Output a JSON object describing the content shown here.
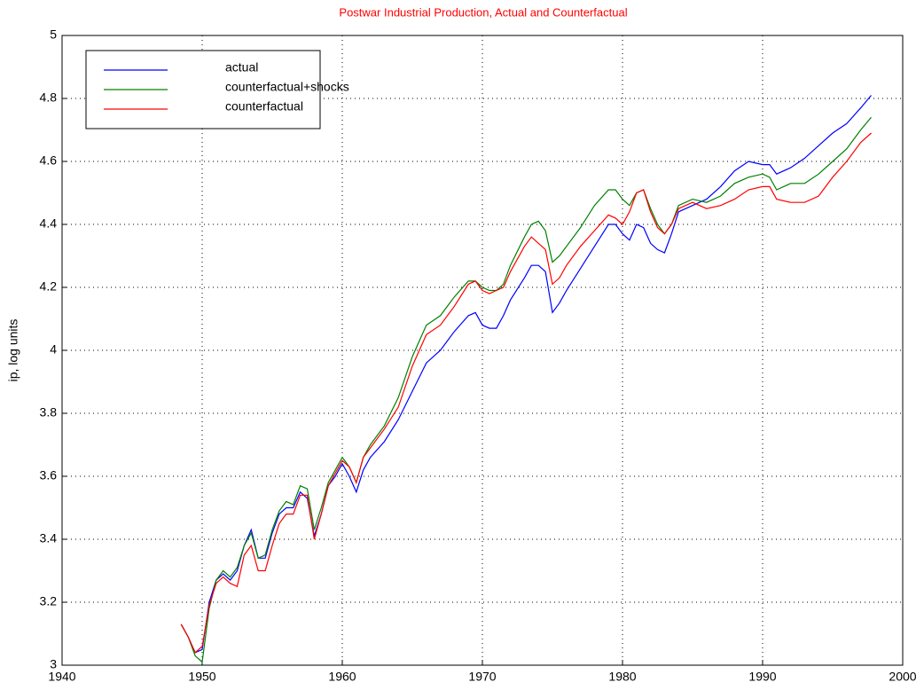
{
  "chart_data": {
    "type": "line",
    "title": "Postwar Industrial Production, Actual and Counterfactual",
    "y_label": "ip, log units",
    "x": [
      1948.5,
      1949,
      1949.5,
      1950,
      1950.5,
      1951,
      1951.5,
      1952,
      1952.5,
      1953,
      1953.5,
      1954,
      1954.5,
      1955,
      1955.5,
      1956,
      1956.5,
      1957,
      1957.5,
      1958,
      1958.5,
      1959,
      1959.5,
      1960,
      1960.5,
      1961,
      1961.5,
      1962,
      1963,
      1964,
      1965,
      1966,
      1967,
      1968,
      1969,
      1969.5,
      1970,
      1970.5,
      1971,
      1971.5,
      1972,
      1973,
      1973.5,
      1974,
      1974.5,
      1975,
      1975.5,
      1976,
      1977,
      1978,
      1979,
      1979.5,
      1980,
      1980.5,
      1981,
      1981.5,
      1982,
      1982.5,
      1983,
      1983.5,
      1984,
      1985,
      1986,
      1987,
      1988,
      1989,
      1990,
      1990.5,
      1991,
      1992,
      1993,
      1994,
      1995,
      1996,
      1997,
      1997.75
    ],
    "series": [
      {
        "name": "actual",
        "color": "#0000ff",
        "values": [
          3.13,
          3.09,
          3.04,
          3.05,
          3.2,
          3.27,
          3.29,
          3.27,
          3.3,
          3.38,
          3.43,
          3.34,
          3.34,
          3.42,
          3.48,
          3.5,
          3.5,
          3.55,
          3.53,
          3.41,
          3.48,
          3.57,
          3.6,
          3.64,
          3.6,
          3.55,
          3.62,
          3.66,
          3.71,
          3.78,
          3.87,
          3.96,
          4.0,
          4.06,
          4.11,
          4.12,
          4.08,
          4.07,
          4.07,
          4.11,
          4.16,
          4.23,
          4.27,
          4.27,
          4.25,
          4.12,
          4.15,
          4.19,
          4.26,
          4.33,
          4.4,
          4.4,
          4.37,
          4.35,
          4.4,
          4.39,
          4.34,
          4.32,
          4.31,
          4.37,
          4.44,
          4.46,
          4.48,
          4.52,
          4.57,
          4.6,
          4.59,
          4.59,
          4.56,
          4.58,
          4.61,
          4.65,
          4.69,
          4.72,
          4.77,
          4.81
        ]
      },
      {
        "name": "counterfactual+shocks",
        "color": "#008000",
        "values": [
          3.13,
          3.09,
          3.03,
          3.01,
          3.18,
          3.27,
          3.3,
          3.28,
          3.31,
          3.38,
          3.42,
          3.34,
          3.35,
          3.43,
          3.49,
          3.52,
          3.51,
          3.57,
          3.56,
          3.43,
          3.5,
          3.58,
          3.62,
          3.66,
          3.63,
          3.58,
          3.66,
          3.7,
          3.76,
          3.85,
          3.98,
          4.08,
          4.11,
          4.17,
          4.22,
          4.22,
          4.2,
          4.19,
          4.19,
          4.21,
          4.27,
          4.36,
          4.4,
          4.41,
          4.38,
          4.28,
          4.3,
          4.33,
          4.39,
          4.46,
          4.51,
          4.51,
          4.48,
          4.46,
          4.5,
          4.51,
          4.45,
          4.4,
          4.37,
          4.4,
          4.46,
          4.48,
          4.47,
          4.49,
          4.53,
          4.55,
          4.56,
          4.55,
          4.51,
          4.53,
          4.53,
          4.56,
          4.6,
          4.64,
          4.7,
          4.74
        ]
      },
      {
        "name": "counterfactual",
        "color": "#ff0000",
        "values": [
          3.13,
          3.09,
          3.04,
          3.06,
          3.19,
          3.26,
          3.28,
          3.26,
          3.25,
          3.35,
          3.38,
          3.3,
          3.3,
          3.38,
          3.45,
          3.48,
          3.48,
          3.54,
          3.54,
          3.4,
          3.48,
          3.57,
          3.61,
          3.65,
          3.63,
          3.58,
          3.66,
          3.69,
          3.75,
          3.82,
          3.95,
          4.05,
          4.08,
          4.14,
          4.21,
          4.22,
          4.19,
          4.18,
          4.19,
          4.2,
          4.25,
          4.33,
          4.36,
          4.34,
          4.32,
          4.21,
          4.23,
          4.27,
          4.33,
          4.38,
          4.43,
          4.42,
          4.4,
          4.44,
          4.5,
          4.51,
          4.44,
          4.39,
          4.37,
          4.4,
          4.45,
          4.47,
          4.45,
          4.46,
          4.48,
          4.51,
          4.52,
          4.52,
          4.48,
          4.47,
          4.47,
          4.49,
          4.55,
          4.6,
          4.66,
          4.69
        ]
      }
    ],
    "xlim": [
      1940,
      2000
    ],
    "xticks": [
      1940,
      1950,
      1960,
      1970,
      1980,
      1990,
      2000
    ],
    "ylim": [
      3,
      5
    ],
    "yticks": [
      3,
      3.2,
      3.4,
      3.6,
      3.8,
      4,
      4.2,
      4.4,
      4.6,
      4.8,
      5
    ],
    "grid": true,
    "legend": "upper left"
  }
}
